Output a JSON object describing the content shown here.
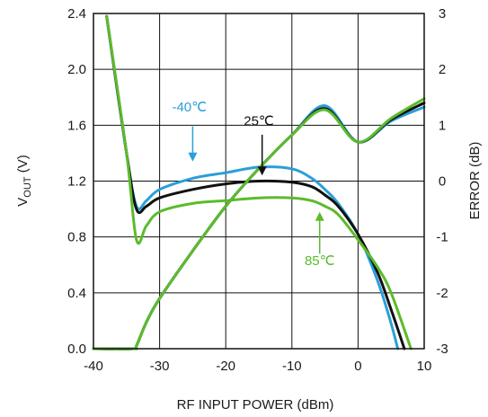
{
  "chart_data": {
    "type": "line",
    "xlabel": "RF INPUT POWER (dBm)",
    "ylabel_main": "V",
    "ylabel_sub": "OUT",
    "ylabel_unit": " (V)",
    "ylabel_right": "ERROR (dB)",
    "xlim": [
      -40,
      10
    ],
    "ylim_left": [
      0,
      2.4
    ],
    "ylim_right": [
      -3,
      3
    ],
    "grid": true,
    "x_ticks": [
      -40,
      -30,
      -20,
      -10,
      0,
      10
    ],
    "x_tick_labels": [
      "-40",
      "-30",
      "-20",
      "-10",
      "0",
      "10"
    ],
    "y_left_ticks": [
      0,
      0.4,
      0.8,
      1.2,
      1.6,
      2.0,
      2.4
    ],
    "y_left_tick_labels": [
      "0.0",
      "0.4",
      "0.8",
      "1.2",
      "1.6",
      "2.0",
      "2.4"
    ],
    "y_right_ticks": [
      -3,
      -2,
      -1,
      0,
      1,
      2,
      3
    ],
    "y_right_tick_labels": [
      "-3",
      "-2",
      "-1",
      "0",
      "1",
      "2",
      "3"
    ],
    "series": [
      {
        "name": "-40℃",
        "color": "#2a9fd8",
        "axis": "left",
        "x": [
          -40,
          -34,
          -33.5,
          -32,
          -30,
          -25,
          -20,
          -15,
          -10,
          -5,
          0,
          5,
          10
        ],
        "y": [
          0.0,
          0.0,
          0.02,
          0.19,
          0.36,
          0.7,
          1.02,
          1.29,
          1.53,
          1.74,
          1.48,
          1.63,
          1.73
        ]
      },
      {
        "name": "25℃",
        "color": "#111111",
        "axis": "left",
        "x": [
          -40,
          -34,
          -33.5,
          -32,
          -30,
          -25,
          -20,
          -15,
          -10,
          -5,
          0,
          5,
          10
        ],
        "y": [
          0.0,
          0.0,
          0.02,
          0.19,
          0.36,
          0.7,
          1.02,
          1.29,
          1.53,
          1.72,
          1.48,
          1.64,
          1.76
        ]
      },
      {
        "name": "85℃",
        "color": "#5cbb2c",
        "axis": "left",
        "x": [
          -40,
          -34,
          -33.5,
          -32,
          -30,
          -25,
          -20,
          -15,
          -10,
          -5,
          0,
          5,
          10
        ],
        "y": [
          0.0,
          0.0,
          0.02,
          0.19,
          0.36,
          0.7,
          1.02,
          1.29,
          1.53,
          1.71,
          1.48,
          1.65,
          1.79
        ]
      },
      {
        "name": "-40℃",
        "color": "#2a9fd8",
        "axis": "right",
        "x": [
          -38,
          -35,
          -33.5,
          -32,
          -30,
          -25,
          -20,
          -15,
          -10,
          -7,
          -5,
          -3,
          0,
          3,
          5,
          6
        ],
        "y": [
          2.95,
          0.5,
          -0.45,
          -0.35,
          -0.15,
          0.05,
          0.15,
          0.25,
          0.22,
          0.05,
          -0.15,
          -0.4,
          -0.95,
          -1.8,
          -2.55,
          -3.0
        ]
      },
      {
        "name": "25℃",
        "color": "#111111",
        "axis": "right",
        "x": [
          -38,
          -35,
          -33.5,
          -32,
          -30,
          -25,
          -20,
          -15,
          -10,
          -7,
          -5,
          -3,
          0,
          3,
          5,
          7
        ],
        "y": [
          2.95,
          0.5,
          -0.5,
          -0.45,
          -0.3,
          -0.15,
          -0.05,
          0.0,
          -0.02,
          -0.1,
          -0.25,
          -0.45,
          -0.95,
          -1.65,
          -2.3,
          -3.0
        ]
      },
      {
        "name": "85℃",
        "color": "#5cbb2c",
        "axis": "right",
        "x": [
          -38,
          -35,
          -33.5,
          -32,
          -30,
          -25,
          -20,
          -15,
          -10,
          -7,
          -5,
          -3,
          0,
          3,
          5,
          8
        ],
        "y": [
          2.95,
          0.5,
          -1.05,
          -0.8,
          -0.55,
          -0.4,
          -0.35,
          -0.3,
          -0.3,
          -0.35,
          -0.45,
          -0.6,
          -1.05,
          -1.55,
          -2.0,
          -3.0
        ]
      }
    ],
    "annotations": [
      {
        "text": "-40℃",
        "color": "#2a9fd8",
        "x": -25.5,
        "y_right": 1.25,
        "arrow_x": -25,
        "arrow_from": 0.98,
        "arrow_to": 0.35
      },
      {
        "text": "25℃",
        "color": "#111111",
        "x": -15,
        "y_right": 1.0,
        "arrow_x": -14.5,
        "arrow_from": 0.83,
        "arrow_to": 0.1
      },
      {
        "text": "85℃",
        "color": "#5cbb2c",
        "x": -5.8,
        "y_right": -1.5,
        "arrow_x": -5.8,
        "arrow_from": -1.3,
        "arrow_to": -0.55
      }
    ]
  }
}
